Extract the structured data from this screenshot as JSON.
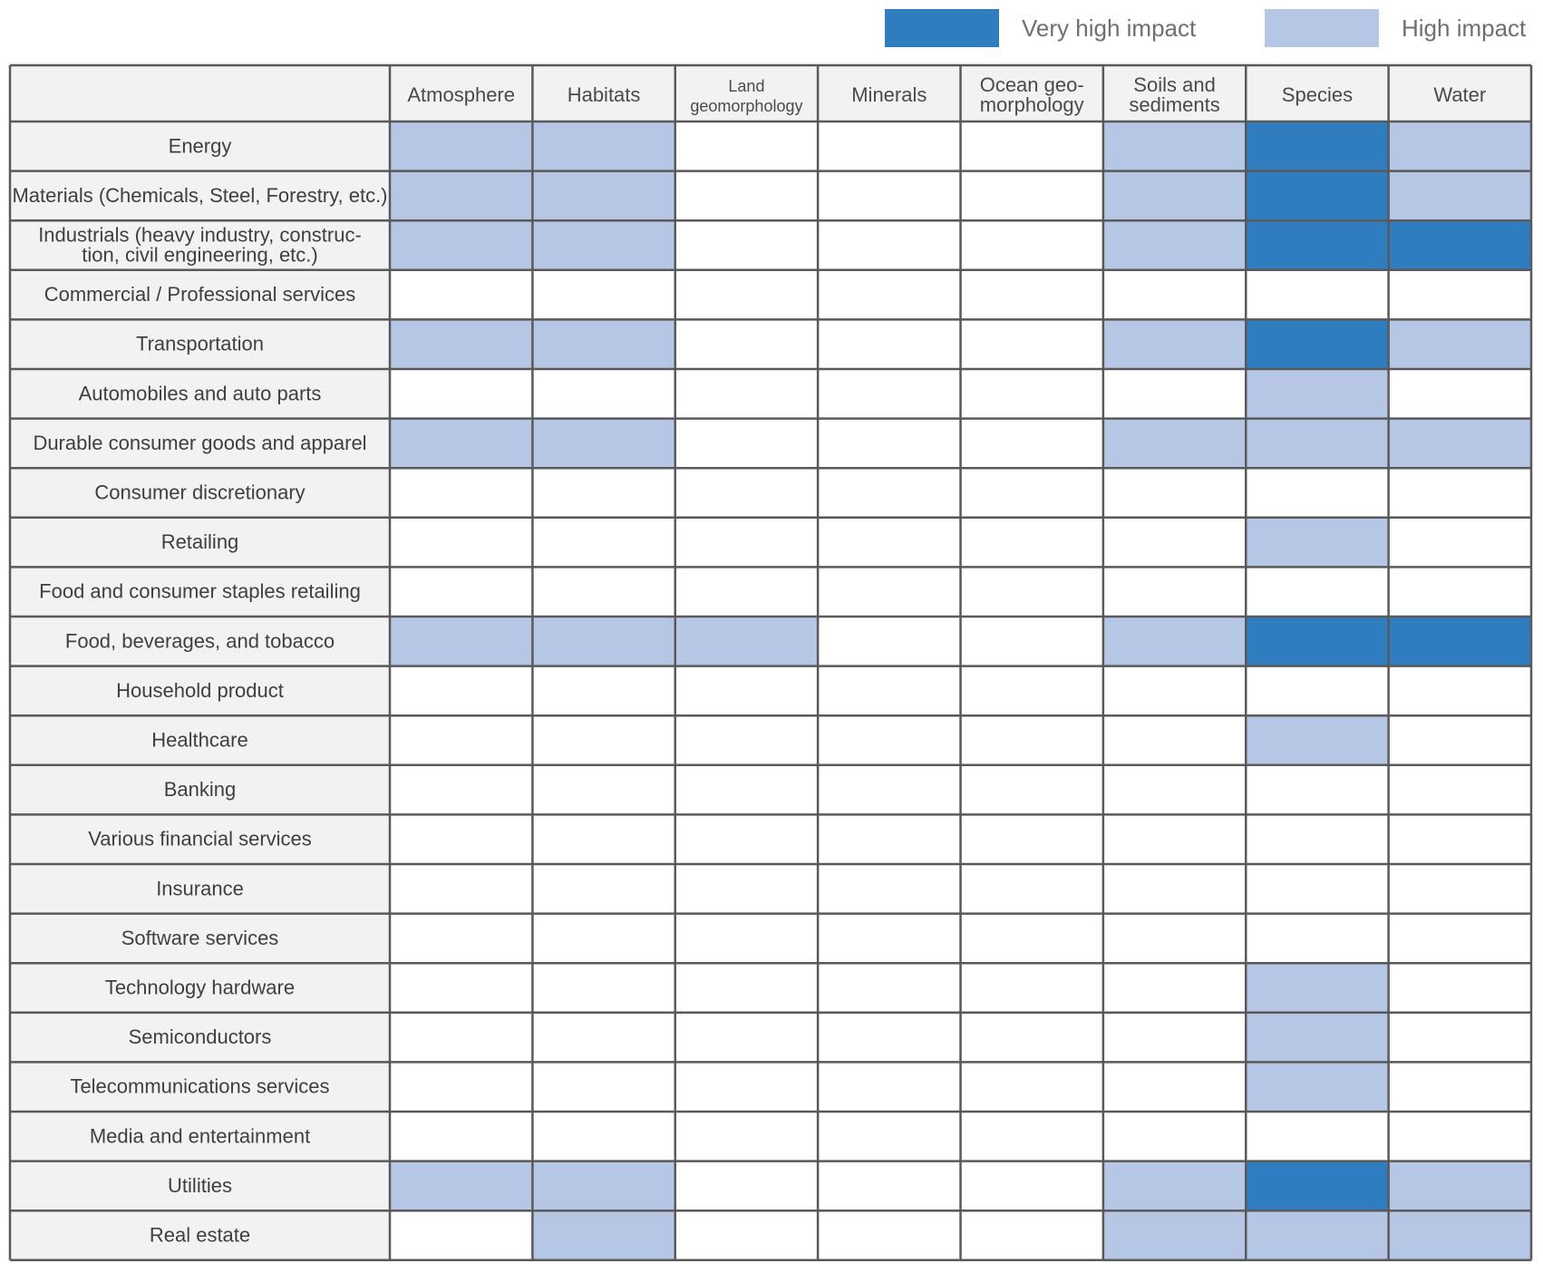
{
  "legend": {
    "very_high": {
      "label": "Very high impact",
      "color": "#2f7dbf"
    },
    "high": {
      "label": "High impact",
      "color": "#b5c7e4"
    }
  },
  "colors": {
    "none": "#ffffff",
    "label_bg": "#f2f2f2",
    "grid": "#595959"
  },
  "chart_data": {
    "type": "heatmap",
    "title": "",
    "levels": {
      "0": "none",
      "1": "High impact",
      "2": "Very high impact"
    },
    "columns": [
      [
        "Atmosphere"
      ],
      [
        "Habitats"
      ],
      [
        "Land",
        "geomorphology"
      ],
      [
        "Minerals"
      ],
      [
        "Ocean geo-",
        "morphology"
      ],
      [
        "Soils and",
        "sediments"
      ],
      [
        "Species"
      ],
      [
        "Water"
      ]
    ],
    "rows": [
      {
        "label": [
          "Energy"
        ],
        "values": [
          1,
          1,
          0,
          0,
          0,
          1,
          2,
          1
        ]
      },
      {
        "label": [
          "Materials (Chemicals, Steel, Forestry, etc.)"
        ],
        "values": [
          1,
          1,
          0,
          0,
          0,
          1,
          2,
          1
        ]
      },
      {
        "label": [
          "Industrials (heavy industry, construc-",
          "tion, civil engineering, etc.)"
        ],
        "values": [
          1,
          1,
          0,
          0,
          0,
          1,
          2,
          2
        ]
      },
      {
        "label": [
          "Commercial / Professional services"
        ],
        "values": [
          0,
          0,
          0,
          0,
          0,
          0,
          0,
          0
        ]
      },
      {
        "label": [
          "Transportation"
        ],
        "values": [
          1,
          1,
          0,
          0,
          0,
          1,
          2,
          1
        ]
      },
      {
        "label": [
          "Automobiles and auto parts"
        ],
        "values": [
          0,
          0,
          0,
          0,
          0,
          0,
          1,
          0
        ]
      },
      {
        "label": [
          "Durable consumer goods and apparel"
        ],
        "values": [
          1,
          1,
          0,
          0,
          0,
          1,
          1,
          1
        ]
      },
      {
        "label": [
          "Consumer discretionary"
        ],
        "values": [
          0,
          0,
          0,
          0,
          0,
          0,
          0,
          0
        ]
      },
      {
        "label": [
          "Retailing"
        ],
        "values": [
          0,
          0,
          0,
          0,
          0,
          0,
          1,
          0
        ]
      },
      {
        "label": [
          "Food and consumer staples retailing"
        ],
        "values": [
          0,
          0,
          0,
          0,
          0,
          0,
          0,
          0
        ]
      },
      {
        "label": [
          "Food, beverages, and tobacco"
        ],
        "values": [
          1,
          1,
          1,
          0,
          0,
          1,
          2,
          2
        ]
      },
      {
        "label": [
          "Household product"
        ],
        "values": [
          0,
          0,
          0,
          0,
          0,
          0,
          0,
          0
        ]
      },
      {
        "label": [
          "Healthcare"
        ],
        "values": [
          0,
          0,
          0,
          0,
          0,
          0,
          1,
          0
        ]
      },
      {
        "label": [
          "Banking"
        ],
        "values": [
          0,
          0,
          0,
          0,
          0,
          0,
          0,
          0
        ]
      },
      {
        "label": [
          "Various financial services"
        ],
        "values": [
          0,
          0,
          0,
          0,
          0,
          0,
          0,
          0
        ]
      },
      {
        "label": [
          "Insurance"
        ],
        "values": [
          0,
          0,
          0,
          0,
          0,
          0,
          0,
          0
        ]
      },
      {
        "label": [
          "Software services"
        ],
        "values": [
          0,
          0,
          0,
          0,
          0,
          0,
          0,
          0
        ]
      },
      {
        "label": [
          "Technology hardware"
        ],
        "values": [
          0,
          0,
          0,
          0,
          0,
          0,
          1,
          0
        ]
      },
      {
        "label": [
          "Semiconductors"
        ],
        "values": [
          0,
          0,
          0,
          0,
          0,
          0,
          1,
          0
        ]
      },
      {
        "label": [
          "Telecommunications services"
        ],
        "values": [
          0,
          0,
          0,
          0,
          0,
          0,
          1,
          0
        ]
      },
      {
        "label": [
          "Media and entertainment"
        ],
        "values": [
          0,
          0,
          0,
          0,
          0,
          0,
          0,
          0
        ]
      },
      {
        "label": [
          "Utilities"
        ],
        "values": [
          1,
          1,
          0,
          0,
          0,
          1,
          2,
          1
        ]
      },
      {
        "label": [
          "Real estate"
        ],
        "values": [
          0,
          1,
          0,
          0,
          0,
          1,
          1,
          1
        ]
      }
    ]
  }
}
